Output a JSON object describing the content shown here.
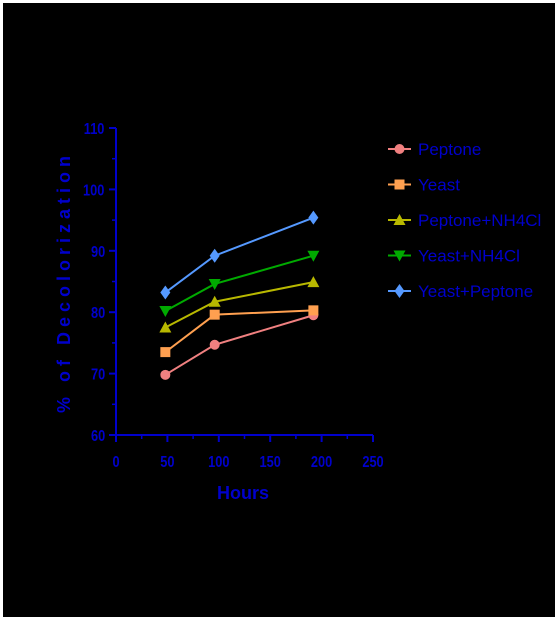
{
  "chart_data": {
    "type": "line",
    "title": "",
    "xlabel": "Hours",
    "ylabel": "% of Decolorization",
    "xlim": [
      0,
      250
    ],
    "ylim": [
      60,
      110
    ],
    "xticks": [
      "0",
      "50",
      "100",
      "150",
      "200",
      "250"
    ],
    "yticks": [
      "60",
      "70",
      "80",
      "90",
      "100",
      "110"
    ],
    "legend_position": "right",
    "series": [
      {
        "name": "Peptone",
        "color": "#f08080",
        "marker": "circle",
        "x": [
          48,
          96,
          192
        ],
        "y": [
          69.8,
          74.7,
          79.5
        ]
      },
      {
        "name": "Yeast",
        "color": "#ffa050",
        "marker": "square",
        "x": [
          48,
          96,
          192
        ],
        "y": [
          73.5,
          79.6,
          80.3
        ]
      },
      {
        "name": "Peptone+NH4Cl",
        "color": "#b8b800",
        "marker": "triangle-up",
        "x": [
          48,
          96,
          192
        ],
        "y": [
          77.5,
          81.7,
          84.9
        ]
      },
      {
        "name": "Yeast+NH4Cl",
        "color": "#00aa00",
        "marker": "triangle-down",
        "x": [
          48,
          96,
          192
        ],
        "y": [
          80.2,
          84.6,
          89.2
        ]
      },
      {
        "name": "Yeast+Peptone",
        "color": "#5599ff",
        "marker": "diamond",
        "x": [
          48,
          96,
          192
        ],
        "y": [
          83.2,
          89.2,
          95.4
        ]
      }
    ]
  }
}
